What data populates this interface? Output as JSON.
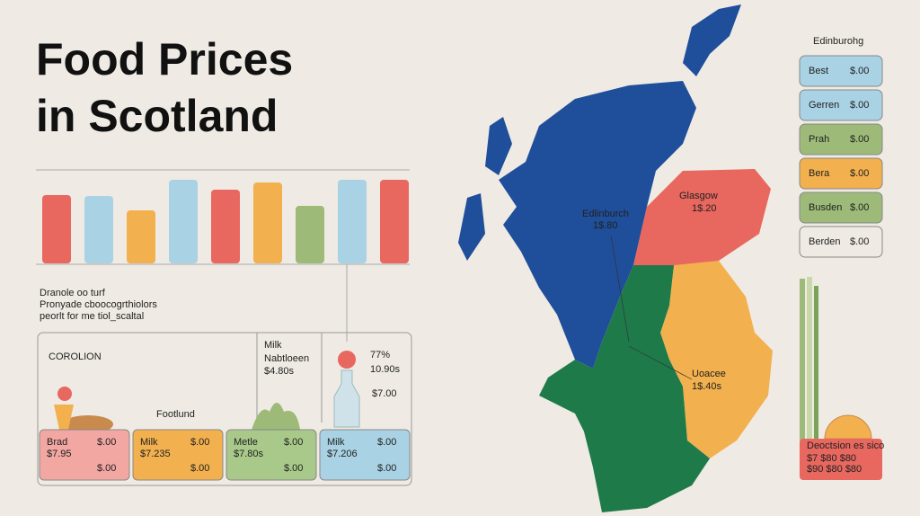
{
  "header": {
    "title_lines": [
      "Food Prices",
      "in Scotland"
    ]
  },
  "chart_data": {
    "type": "bar",
    "values": [
      76,
      75,
      59,
      93,
      82,
      90,
      64,
      93,
      93
    ],
    "colors": [
      "#e8675f",
      "#a9d2e4",
      "#f2b04e",
      "#a9d2e4",
      "#e8675f",
      "#f2b04e",
      "#9dba79",
      "#a9d2e4",
      "#e8675f"
    ],
    "ylim": [
      0,
      100
    ]
  },
  "description": [
    "Dranole oo turf",
    "Pronyade cboocogrthiolors",
    "peorlt for me tiol_scaltal"
  ],
  "panel": {
    "label": "COROLION",
    "item": "Milk",
    "sub": "Nabtloeen",
    "price": "$4.80s",
    "percent": "77%",
    "percent_sub": "10.90s",
    "big_price": "$7.00",
    "footer": "Footlund"
  },
  "cards": [
    {
      "name": "Brad",
      "price": "$.00",
      "sub": "$7.95",
      "price2": "$.00"
    },
    {
      "name": "Milk",
      "price": "$.00",
      "sub": "$7.235",
      "price2": "$.00"
    },
    {
      "name": "Metle",
      "price": "$.00",
      "sub": "$7.80s",
      "price2": "$.00"
    },
    {
      "name": "Milk",
      "price": "$.00",
      "sub": "$7.206",
      "price2": "$.00"
    }
  ],
  "map_labels": [
    {
      "name": "Edlinburch",
      "value": "1$.80"
    },
    {
      "name": "Glasgow",
      "value": "1$.20"
    },
    {
      "name": "Uoacee",
      "value": "1$.40s"
    }
  ],
  "list": {
    "title": "Edinburohg",
    "items": [
      {
        "name": "Best",
        "price": "$.00"
      },
      {
        "name": "Gerren",
        "price": "$.00"
      },
      {
        "name": "Prah",
        "price": "$.00"
      },
      {
        "name": "Bera",
        "price": "$.00"
      },
      {
        "name": "Busden",
        "price": "$.00"
      },
      {
        "name": "Berden",
        "price": "$.00"
      }
    ]
  },
  "note": {
    "title": "Deoctsion es sico",
    "line1": "$7 $80 $80",
    "line2": "$90 $80 $80"
  }
}
